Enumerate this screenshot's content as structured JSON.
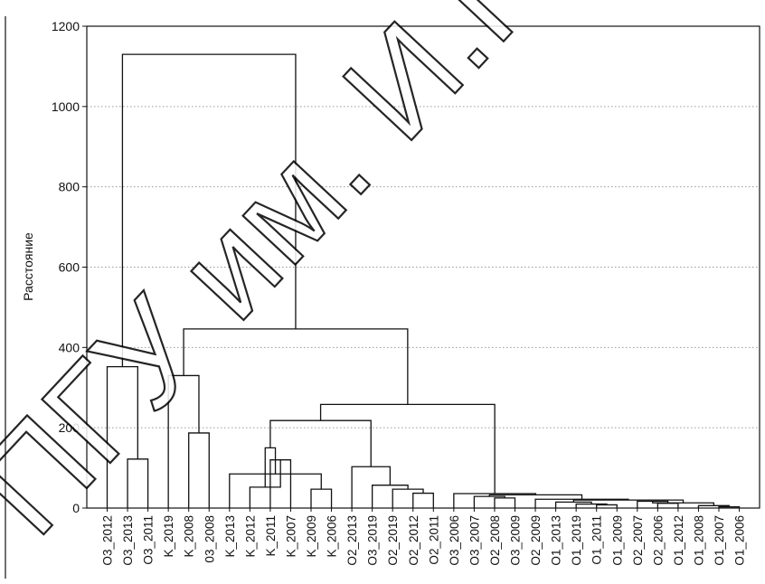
{
  "watermark": "ПГУ им. И.П. Ш...",
  "colors": {
    "background": "#ffffff",
    "line": "#111111",
    "grid": "#9a9a9a",
    "watermark": "#000000"
  },
  "chart_data": {
    "type": "dendrogram",
    "title": "",
    "xlabel": "",
    "ylabel": "Расстояние",
    "ylim": [
      0,
      1200
    ],
    "yticks": [
      0,
      200,
      400,
      600,
      800,
      1000,
      1200
    ],
    "grid": "horizontal dotted",
    "leaf_labels": [
      "O3_2012",
      "O3_2013",
      "O3_2011",
      "K_2019",
      "K_2008",
      "03_2008",
      "K_2013",
      "K_2012",
      "K_2011",
      "K_2007",
      "K_2009",
      "K_2006",
      "O2_2013",
      "O3_2019",
      "O2_2019",
      "O2_2012",
      "O2_2011",
      "O3_2006",
      "O3_2007",
      "O2_2008",
      "O3_2009",
      "O2_2009",
      "O1_2013",
      "O1_2019",
      "O1_2011",
      "O1_2009",
      "O2_2007",
      "O2_2006",
      "O1_2012",
      "O1_2008",
      "O1_2007",
      "O1_2006"
    ],
    "merges": [
      {
        "id": "m1",
        "children": [
          "O3_2013",
          "O3_2011"
        ],
        "height": 122
      },
      {
        "id": "m2",
        "children": [
          "O3_2012",
          "m1"
        ],
        "height": 352
      },
      {
        "id": "m3",
        "children": [
          "K_2008",
          "03_2008"
        ],
        "height": 187
      },
      {
        "id": "m4",
        "children": [
          "K_2019",
          "m3"
        ],
        "height": 330
      },
      {
        "id": "m5",
        "children": [
          "K_2011",
          "K_2007"
        ],
        "height": 120
      },
      {
        "id": "m6",
        "children": [
          "K_2012",
          "m5"
        ],
        "height": 52
      },
      {
        "id": "m7",
        "children": [
          "K_2009",
          "K_2006"
        ],
        "height": 47
      },
      {
        "id": "m8",
        "children": [
          "K_2013",
          "m7"
        ],
        "height": 85
      },
      {
        "id": "m9",
        "children": [
          "m6",
          "m8"
        ],
        "height": 150
      },
      {
        "id": "m10",
        "children": [
          "O2_2012",
          "O2_2011"
        ],
        "height": 37
      },
      {
        "id": "m11",
        "children": [
          "O2_2019",
          "m10"
        ],
        "height": 47
      },
      {
        "id": "m12",
        "children": [
          "O3_2019",
          "m11"
        ],
        "height": 57
      },
      {
        "id": "m13",
        "children": [
          "O2_2013",
          "m12"
        ],
        "height": 103
      },
      {
        "id": "m14",
        "children": [
          "m9",
          "m13"
        ],
        "height": 218
      },
      {
        "id": "m15",
        "children": [
          "O2_2008",
          "O3_2009"
        ],
        "height": 25
      },
      {
        "id": "m16",
        "children": [
          "O3_2007",
          "m15"
        ],
        "height": 29
      },
      {
        "id": "m17",
        "children": [
          "O1_2011",
          "O1_2009"
        ],
        "height": 8
      },
      {
        "id": "m18",
        "children": [
          "O1_2019",
          "m17"
        ],
        "height": 10
      },
      {
        "id": "m19",
        "children": [
          "O1_2013",
          "m18"
        ],
        "height": 15
      },
      {
        "id": "m20",
        "children": [
          "O2_2006",
          "O1_2012"
        ],
        "height": 12
      },
      {
        "id": "m21",
        "children": [
          "O2_2007",
          "m20"
        ],
        "height": 17
      },
      {
        "id": "m22",
        "children": [
          "O1_2007",
          "O1_2006"
        ],
        "height": 3
      },
      {
        "id": "m23",
        "children": [
          "O1_2008",
          "m22"
        ],
        "height": 6
      },
      {
        "id": "m24",
        "children": [
          "m21",
          "m23"
        ],
        "height": 13
      },
      {
        "id": "m25",
        "children": [
          "m19",
          "m24"
        ],
        "height": 20
      },
      {
        "id": "m26",
        "children": [
          "O2_2009",
          "m25"
        ],
        "height": 22
      },
      {
        "id": "m27",
        "children": [
          "m16",
          "m26"
        ],
        "height": 33
      },
      {
        "id": "m28",
        "children": [
          "O3_2006",
          "m27"
        ],
        "height": 36
      },
      {
        "id": "m29",
        "children": [
          "m14",
          "m28"
        ],
        "height": 258
      },
      {
        "id": "m30",
        "children": [
          "m4",
          "m29"
        ],
        "height": 446
      },
      {
        "id": "m31",
        "children": [
          "m2",
          "m30"
        ],
        "height": 1130
      }
    ]
  }
}
